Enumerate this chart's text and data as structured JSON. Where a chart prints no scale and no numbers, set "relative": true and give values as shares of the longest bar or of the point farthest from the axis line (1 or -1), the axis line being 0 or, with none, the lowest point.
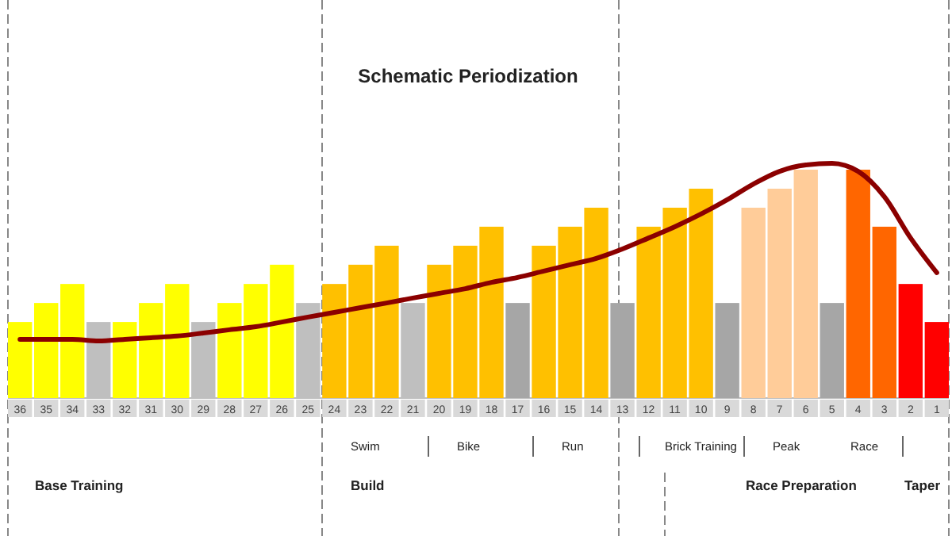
{
  "chart_data": {
    "type": "bar",
    "title": "Schematic Periodization",
    "relative": true,
    "categories": [
      "36",
      "35",
      "34",
      "33",
      "32",
      "31",
      "30",
      "29",
      "28",
      "27",
      "26",
      "25",
      "24",
      "23",
      "22",
      "21",
      "20",
      "19",
      "18",
      "17",
      "16",
      "15",
      "14",
      "13",
      "12",
      "11",
      "10",
      "9",
      "8",
      "7",
      "6",
      "5",
      "4",
      "3",
      "2",
      "1"
    ],
    "series": [
      {
        "values": [
          0.324,
          0.405,
          0.486,
          0.324,
          0.324,
          0.405,
          0.486,
          0.324,
          0.405,
          0.486,
          0.568,
          0.405,
          0.486,
          0.568,
          0.649,
          0.405,
          0.568,
          0.649,
          0.73,
          0.405,
          0.649,
          0.73,
          0.811,
          0.405,
          0.73,
          0.811,
          0.892,
          0.405,
          0.811,
          0.892,
          0.973,
          0.405,
          0.973,
          0.73,
          0.486,
          0.324
        ],
        "colors": [
          "#ffff00",
          "#ffff00",
          "#ffff00",
          "#bfbfbf",
          "#ffff00",
          "#ffff00",
          "#ffff00",
          "#bfbfbf",
          "#ffff00",
          "#ffff00",
          "#ffff00",
          "#bfbfbf",
          "#ffc000",
          "#ffc000",
          "#ffc000",
          "#bfbfbf",
          "#ffc000",
          "#ffc000",
          "#ffc000",
          "#a6a6a6",
          "#ffc000",
          "#ffc000",
          "#ffc000",
          "#a6a6a6",
          "#ffc000",
          "#ffc000",
          "#ffc000",
          "#a6a6a6",
          "#ffcc99",
          "#ffcc99",
          "#ffcc99",
          "#a6a6a6",
          "#ff6600",
          "#ff6600",
          "#ff0000",
          "#ff0000"
        ]
      },
      {
        "type": "line",
        "color": "#8b0000",
        "values": [
          0.25,
          0.25,
          0.25,
          0.243,
          0.25,
          0.257,
          0.264,
          0.277,
          0.291,
          0.304,
          0.324,
          0.345,
          0.365,
          0.385,
          0.405,
          0.426,
          0.446,
          0.466,
          0.493,
          0.514,
          0.541,
          0.568,
          0.595,
          0.635,
          0.682,
          0.73,
          0.784,
          0.845,
          0.912,
          0.966,
          0.993,
          1,
          0.966,
          0.858,
          0.682,
          0.534
        ]
      }
    ],
    "annotations": [
      "Swim",
      "Bike",
      "Run",
      "Brick Training",
      "Peak",
      "Race",
      "Base Training",
      "Build",
      "Race Preparation",
      "Taper"
    ]
  }
}
